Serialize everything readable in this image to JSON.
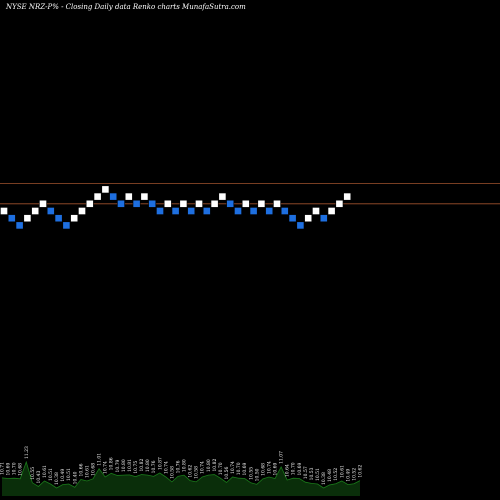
{
  "chart_data": {
    "type": "renko",
    "title": "NYSE NRZ-P% -   Closing Daily data  Renko  charts MunafaSutra.com",
    "xlabel": "",
    "ylabel": "",
    "grid": false,
    "colors": {
      "background": "#000000",
      "up_brick": "#ffffff",
      "down_brick": "#1e6fe0",
      "reference_line": "#a0522d",
      "volume_fill": "#0a2e0a",
      "volume_line": "#1a7a1a",
      "label": "#ffffff"
    },
    "bricks": [
      {
        "dir": "up",
        "level": 0
      },
      {
        "dir": "down",
        "level": -1
      },
      {
        "dir": "down",
        "level": -2
      },
      {
        "dir": "up",
        "level": -1
      },
      {
        "dir": "up",
        "level": 0
      },
      {
        "dir": "up",
        "level": 1
      },
      {
        "dir": "down",
        "level": 0
      },
      {
        "dir": "down",
        "level": -1
      },
      {
        "dir": "down",
        "level": -2
      },
      {
        "dir": "up",
        "level": -1
      },
      {
        "dir": "up",
        "level": 0
      },
      {
        "dir": "up",
        "level": 1
      },
      {
        "dir": "up",
        "level": 2
      },
      {
        "dir": "up",
        "level": 3
      },
      {
        "dir": "down",
        "level": 2
      },
      {
        "dir": "down",
        "level": 1
      },
      {
        "dir": "up",
        "level": 2
      },
      {
        "dir": "down",
        "level": 1
      },
      {
        "dir": "up",
        "level": 2
      },
      {
        "dir": "down",
        "level": 1
      },
      {
        "dir": "down",
        "level": 0
      },
      {
        "dir": "up",
        "level": 1
      },
      {
        "dir": "down",
        "level": 0
      },
      {
        "dir": "up",
        "level": 1
      },
      {
        "dir": "down",
        "level": 0
      },
      {
        "dir": "up",
        "level": 1
      },
      {
        "dir": "down",
        "level": 0
      },
      {
        "dir": "up",
        "level": 1
      },
      {
        "dir": "up",
        "level": 2
      },
      {
        "dir": "down",
        "level": 1
      },
      {
        "dir": "down",
        "level": 0
      },
      {
        "dir": "up",
        "level": 1
      },
      {
        "dir": "down",
        "level": 0
      },
      {
        "dir": "up",
        "level": 1
      },
      {
        "dir": "down",
        "level": 0
      },
      {
        "dir": "up",
        "level": 1
      },
      {
        "dir": "down",
        "level": 0
      },
      {
        "dir": "down",
        "level": -1
      },
      {
        "dir": "down",
        "level": -2
      },
      {
        "dir": "up",
        "level": -1
      },
      {
        "dir": "up",
        "level": 0
      },
      {
        "dir": "down",
        "level": -1
      },
      {
        "dir": "up",
        "level": 0
      },
      {
        "dir": "up",
        "level": 1
      },
      {
        "dir": "up",
        "level": 2
      }
    ],
    "reference_levels": [
      3.8,
      1.0
    ],
    "volume_labels": [
      "10.71",
      "10.69",
      "10.70",
      "10.68",
      "11.23",
      "10.55",
      "10.43",
      "10.61",
      "10.51",
      "10.38",
      "10.49",
      "10.51",
      "10.40",
      "10.66",
      "10.61",
      "10.68",
      "11.01",
      "10.74",
      "10.86",
      "10.79",
      "10.80",
      "10.81",
      "10.75",
      "10.82",
      "10.80",
      "10.76",
      "10.87",
      "10.74",
      "10.58",
      "10.76",
      "10.80",
      "10.62",
      "10.58",
      "10.74",
      "10.80",
      "10.82",
      "10.70",
      "10.56",
      "10.74",
      "10.70",
      "10.69",
      "10.55",
      "10.50",
      "10.68",
      "10.74",
      "10.69",
      "11.07",
      "10.64",
      "10.70",
      "10.69",
      "10.57",
      "10.53",
      "10.51",
      "10.38",
      "10.48",
      "10.52",
      "10.61",
      "10.49",
      "10.52",
      "10.62"
    ]
  }
}
